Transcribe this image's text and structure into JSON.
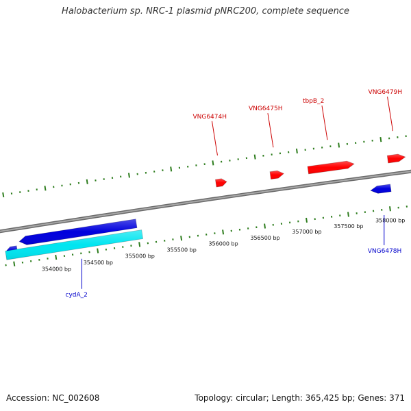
{
  "title": "Halobacterium sp. NRC-1 plasmid pNRC200, complete sequence",
  "footer": {
    "accession": "Accession: NC_002608",
    "summary": "Topology: circular; Length: 365,425 bp; Genes: 371"
  },
  "colors": {
    "forward": "#ff0000",
    "reverse": "#0000dd",
    "other_strand": "#00e5f0",
    "backbone": "#888888",
    "ticks": "#2e7d1e",
    "forward_label": "#cc0000",
    "reverse_label": "#0000cc"
  },
  "position_labels": [
    {
      "text": "354000 bp",
      "bp": 354000
    },
    {
      "text": "354500 bp",
      "bp": 354500
    },
    {
      "text": "355000 bp",
      "bp": 355000
    },
    {
      "text": "355500 bp",
      "bp": 355500
    },
    {
      "text": "356000 bp",
      "bp": 356000
    },
    {
      "text": "356500 bp",
      "bp": 356500
    },
    {
      "text": "357000 bp",
      "bp": 357000
    },
    {
      "text": "357500 bp",
      "bp": 357500
    },
    {
      "text": "358000 bp",
      "bp": 358000
    }
  ],
  "genes": [
    {
      "label": "VNG6474H",
      "strand": "forward",
      "start": 356000,
      "end": 356130
    },
    {
      "label": "VNG6475H",
      "strand": "forward",
      "start": 356650,
      "end": 356810
    },
    {
      "label": "tbpB_2",
      "strand": "forward",
      "start": 357100,
      "end": 357650
    },
    {
      "label": "VNG6479H",
      "strand": "forward",
      "start": 358050,
      "end": 358260
    },
    {
      "label": "VNG6478H",
      "strand": "reverse",
      "start": 357800,
      "end": 358040
    },
    {
      "label": "cydA_2",
      "strand": "reverse",
      "start": 353600,
      "end": 355000
    },
    {
      "label": "",
      "strand": "reverse",
      "start": 353420,
      "end": 353560
    },
    {
      "label": "",
      "strand": "other",
      "start": 353420,
      "end": 355050
    }
  ]
}
